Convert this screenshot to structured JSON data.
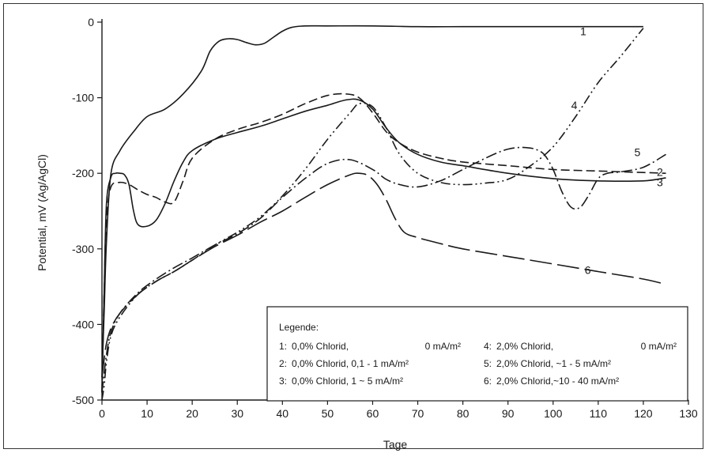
{
  "chart_data": {
    "type": "line",
    "title": "",
    "xlabel": "Tage",
    "ylabel": "Potential, mV (Ag/AgCl)",
    "xlim": [
      0,
      130
    ],
    "ylim": [
      -500,
      0
    ],
    "x_ticks": [
      0,
      10,
      20,
      30,
      40,
      50,
      60,
      70,
      80,
      90,
      100,
      110,
      120,
      130
    ],
    "y_ticks": [
      0,
      -100,
      -200,
      -300,
      -400,
      -500
    ],
    "grid": false,
    "legend": {
      "title": "Legende:",
      "position": "bottom-right",
      "entries": [
        {
          "num": "1:",
          "desc": "0,0% Chlorid,",
          "current": "0 mA/m²"
        },
        {
          "num": "2:",
          "desc": "0,0% Chlorid, 0,1 - 1 mA/m²",
          "current": ""
        },
        {
          "num": "3:",
          "desc": "0,0% Chlorid, 1 ~ 5 mA/m²",
          "current": ""
        },
        {
          "num": "4:",
          "desc": "2,0% Chlorid,",
          "current": "0 mA/m²"
        },
        {
          "num": "5:",
          "desc": "2,0% Chlorid, ~1 - 5 mA/m²",
          "current": ""
        },
        {
          "num": "6:",
          "desc": "2,0% Chlorid,~10 - 40 mA/m²",
          "current": ""
        }
      ]
    },
    "series": [
      {
        "name": "1",
        "label_at": [
          106,
          -12
        ],
        "x": [
          0,
          0.5,
          1,
          2,
          4,
          7,
          10,
          14,
          18,
          22,
          24,
          26,
          28,
          30,
          32,
          34,
          36,
          38,
          40,
          42,
          45,
          50,
          60,
          70,
          80,
          90,
          100,
          110,
          120
        ],
        "y": [
          -470,
          -380,
          -290,
          -200,
          -170,
          -145,
          -125,
          -115,
          -95,
          -65,
          -38,
          -25,
          -22,
          -23,
          -27,
          -30,
          -28,
          -20,
          -12,
          -7,
          -5,
          -5,
          -5,
          -6,
          -6,
          -6,
          -6,
          -6,
          -6
        ]
      },
      {
        "name": "2",
        "label_at": [
          123,
          -198
        ],
        "x": [
          0,
          0.5,
          1,
          2,
          4,
          6,
          8,
          10,
          12,
          14,
          16,
          18,
          20,
          25,
          30,
          35,
          40,
          45,
          50,
          54,
          57,
          60,
          63,
          66,
          70,
          75,
          80,
          90,
          100,
          110,
          120,
          125
        ],
        "y": [
          -490,
          -350,
          -260,
          -218,
          -212,
          -215,
          -222,
          -228,
          -232,
          -238,
          -238,
          -210,
          -180,
          -155,
          -142,
          -133,
          -122,
          -108,
          -97,
          -95,
          -100,
          -120,
          -145,
          -160,
          -172,
          -180,
          -185,
          -190,
          -195,
          -197,
          -199,
          -200
        ]
      },
      {
        "name": "3",
        "label_at": [
          123,
          -212
        ],
        "x": [
          0,
          0.5,
          1,
          2,
          3,
          4,
          5,
          6,
          7,
          8,
          10,
          12,
          14,
          16,
          18,
          20,
          25,
          30,
          35,
          40,
          45,
          50,
          54,
          57,
          60,
          63,
          66,
          70,
          75,
          80,
          90,
          100,
          110,
          120,
          125
        ],
        "y": [
          -490,
          -350,
          -240,
          -205,
          -200,
          -200,
          -202,
          -215,
          -250,
          -268,
          -270,
          -262,
          -240,
          -210,
          -185,
          -170,
          -155,
          -146,
          -138,
          -128,
          -118,
          -110,
          -103,
          -103,
          -115,
          -140,
          -160,
          -175,
          -185,
          -190,
          -200,
          -207,
          -210,
          -210,
          -206
        ]
      },
      {
        "name": "4",
        "label_at": [
          104,
          -110
        ],
        "x": [
          0,
          0.5,
          1,
          2,
          4,
          8,
          12,
          16,
          20,
          25,
          30,
          35,
          40,
          45,
          50,
          55,
          57,
          60,
          63,
          66,
          70,
          75,
          80,
          85,
          90,
          95,
          100,
          105,
          110,
          115,
          120
        ],
        "y": [
          -500,
          -480,
          -450,
          -415,
          -390,
          -360,
          -343,
          -330,
          -315,
          -295,
          -278,
          -258,
          -230,
          -195,
          -155,
          -120,
          -108,
          -112,
          -140,
          -175,
          -200,
          -212,
          -215,
          -213,
          -208,
          -190,
          -165,
          -125,
          -80,
          -45,
          -8
        ]
      },
      {
        "name": "5",
        "label_at": [
          118,
          -172
        ],
        "x": [
          0,
          1,
          2,
          4,
          8,
          12,
          16,
          20,
          25,
          30,
          35,
          40,
          45,
          50,
          55,
          60,
          63,
          66,
          70,
          75,
          80,
          85,
          88,
          90,
          92,
          94,
          96,
          98,
          100,
          102,
          104,
          106,
          108,
          110,
          112,
          115,
          120,
          125
        ],
        "y": [
          -490,
          -440,
          -410,
          -385,
          -358,
          -340,
          -325,
          -312,
          -295,
          -280,
          -260,
          -232,
          -207,
          -187,
          -182,
          -195,
          -208,
          -215,
          -218,
          -210,
          -195,
          -180,
          -172,
          -168,
          -166,
          -166,
          -168,
          -175,
          -195,
          -225,
          -245,
          -245,
          -228,
          -207,
          -200,
          -198,
          -192,
          -175
        ]
      },
      {
        "name": "6",
        "label_at": [
          107,
          -328
        ],
        "x": [
          0,
          0.5,
          1,
          2,
          4,
          8,
          12,
          16,
          20,
          25,
          30,
          35,
          40,
          45,
          50,
          55,
          57,
          59,
          61,
          63,
          65,
          67,
          70,
          75,
          80,
          90,
          100,
          110,
          120,
          125
        ],
        "y": [
          -470,
          -445,
          -425,
          -405,
          -385,
          -360,
          -343,
          -330,
          -315,
          -297,
          -282,
          -265,
          -250,
          -232,
          -215,
          -202,
          -200,
          -203,
          -215,
          -235,
          -260,
          -278,
          -285,
          -293,
          -300,
          -310,
          -320,
          -330,
          -340,
          -347
        ]
      }
    ]
  }
}
